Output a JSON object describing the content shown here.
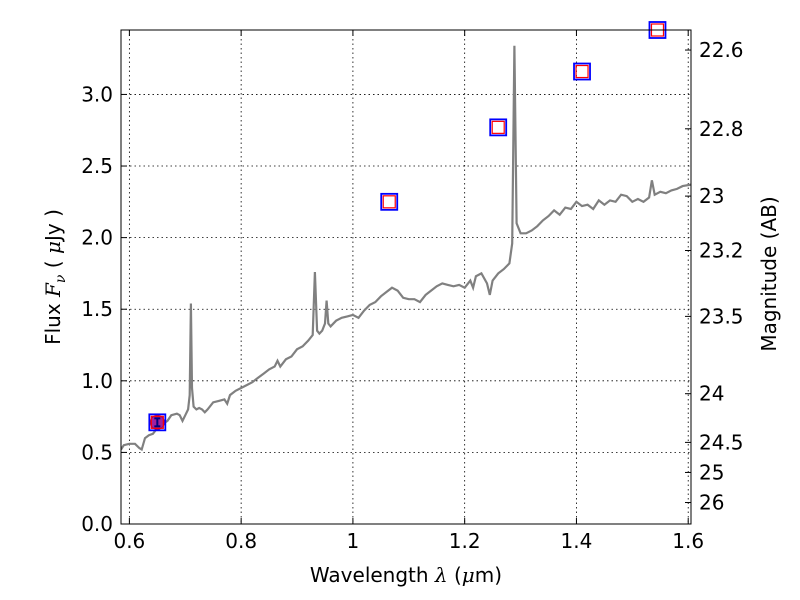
{
  "chart_data": {
    "type": "scatter",
    "xlabel": {
      "prefix": "Wavelength  ",
      "symbol": "λ",
      "open": " (",
      "unit_mu": "μ",
      "unit_rest": "m)"
    },
    "ylabel": {
      "prefix": "Flux  ",
      "symbol": "F",
      "sub": "ν",
      "open": "  ( ",
      "unit_mu": "μ",
      "unit_rest": "Jy )"
    },
    "y2label": "Magnitude (AB)",
    "xlim": [
      0.585,
      1.605
    ],
    "ylim": [
      0.0,
      3.45
    ],
    "grid": true,
    "x_ticks": [
      {
        "v": 0.6,
        "label": "0.6"
      },
      {
        "v": 0.8,
        "label": "0.8"
      },
      {
        "v": 1.0,
        "label": "1"
      },
      {
        "v": 1.2,
        "label": "1.2"
      },
      {
        "v": 1.4,
        "label": "1.4"
      },
      {
        "v": 1.6,
        "label": "1.6"
      }
    ],
    "y_ticks": [
      {
        "v": 0.0,
        "label": "0.0"
      },
      {
        "v": 0.5,
        "label": "0.5"
      },
      {
        "v": 1.0,
        "label": "1.0"
      },
      {
        "v": 1.5,
        "label": "1.5"
      },
      {
        "v": 2.0,
        "label": "2.0"
      },
      {
        "v": 2.5,
        "label": "2.5"
      },
      {
        "v": 3.0,
        "label": "3.0"
      }
    ],
    "y2_ticks": [
      {
        "flux": 3.31,
        "label": "22.6"
      },
      {
        "flux": 2.76,
        "label": "22.8"
      },
      {
        "flux": 2.29,
        "label": "23"
      },
      {
        "flux": 1.91,
        "label": "23.2"
      },
      {
        "flux": 1.45,
        "label": "23.5"
      },
      {
        "flux": 0.91,
        "label": "24"
      },
      {
        "flux": 0.57,
        "label": "24.5"
      },
      {
        "flux": 0.36,
        "label": "25"
      },
      {
        "flux": 0.15,
        "label": "26"
      }
    ],
    "series": [
      {
        "kind": "spectrum",
        "color": "#808080",
        "points": [
          [
            0.585,
            0.52
          ],
          [
            0.59,
            0.55
          ],
          [
            0.6,
            0.56
          ],
          [
            0.61,
            0.56
          ],
          [
            0.618,
            0.53
          ],
          [
            0.622,
            0.52
          ],
          [
            0.628,
            0.6
          ],
          [
            0.635,
            0.62
          ],
          [
            0.642,
            0.63
          ],
          [
            0.65,
            0.67
          ],
          [
            0.66,
            0.7
          ],
          [
            0.668,
            0.72
          ],
          [
            0.675,
            0.76
          ],
          [
            0.685,
            0.77
          ],
          [
            0.69,
            0.76
          ],
          [
            0.695,
            0.72
          ],
          [
            0.7,
            0.76
          ],
          [
            0.705,
            0.8
          ],
          [
            0.708,
            0.9
          ],
          [
            0.71,
            1.54
          ],
          [
            0.712,
            0.95
          ],
          [
            0.715,
            0.82
          ],
          [
            0.72,
            0.8
          ],
          [
            0.725,
            0.81
          ],
          [
            0.73,
            0.8
          ],
          [
            0.735,
            0.78
          ],
          [
            0.74,
            0.8
          ],
          [
            0.75,
            0.85
          ],
          [
            0.76,
            0.86
          ],
          [
            0.77,
            0.87
          ],
          [
            0.775,
            0.84
          ],
          [
            0.78,
            0.9
          ],
          [
            0.79,
            0.93
          ],
          [
            0.8,
            0.95
          ],
          [
            0.81,
            0.97
          ],
          [
            0.82,
            0.99
          ],
          [
            0.83,
            1.02
          ],
          [
            0.84,
            1.05
          ],
          [
            0.85,
            1.08
          ],
          [
            0.86,
            1.1
          ],
          [
            0.865,
            1.14
          ],
          [
            0.87,
            1.1
          ],
          [
            0.88,
            1.15
          ],
          [
            0.89,
            1.17
          ],
          [
            0.9,
            1.22
          ],
          [
            0.91,
            1.24
          ],
          [
            0.92,
            1.28
          ],
          [
            0.928,
            1.32
          ],
          [
            0.932,
            1.76
          ],
          [
            0.936,
            1.35
          ],
          [
            0.94,
            1.33
          ],
          [
            0.945,
            1.35
          ],
          [
            0.95,
            1.4
          ],
          [
            0.953,
            1.56
          ],
          [
            0.956,
            1.4
          ],
          [
            0.96,
            1.38
          ],
          [
            0.97,
            1.42
          ],
          [
            0.98,
            1.44
          ],
          [
            0.99,
            1.45
          ],
          [
            1.0,
            1.46
          ],
          [
            1.01,
            1.44
          ],
          [
            1.02,
            1.49
          ],
          [
            1.03,
            1.53
          ],
          [
            1.04,
            1.55
          ],
          [
            1.05,
            1.59
          ],
          [
            1.06,
            1.62
          ],
          [
            1.07,
            1.65
          ],
          [
            1.08,
            1.63
          ],
          [
            1.09,
            1.58
          ],
          [
            1.1,
            1.57
          ],
          [
            1.11,
            1.57
          ],
          [
            1.12,
            1.55
          ],
          [
            1.13,
            1.6
          ],
          [
            1.14,
            1.63
          ],
          [
            1.15,
            1.66
          ],
          [
            1.16,
            1.68
          ],
          [
            1.17,
            1.67
          ],
          [
            1.18,
            1.66
          ],
          [
            1.19,
            1.67
          ],
          [
            1.2,
            1.65
          ],
          [
            1.21,
            1.7
          ],
          [
            1.215,
            1.65
          ],
          [
            1.22,
            1.73
          ],
          [
            1.23,
            1.75
          ],
          [
            1.24,
            1.68
          ],
          [
            1.245,
            1.6
          ],
          [
            1.25,
            1.7
          ],
          [
            1.26,
            1.75
          ],
          [
            1.27,
            1.78
          ],
          [
            1.28,
            1.82
          ],
          [
            1.285,
            1.96
          ],
          [
            1.289,
            3.34
          ],
          [
            1.293,
            2.1
          ],
          [
            1.3,
            2.03
          ],
          [
            1.31,
            2.03
          ],
          [
            1.32,
            2.05
          ],
          [
            1.33,
            2.08
          ],
          [
            1.34,
            2.12
          ],
          [
            1.35,
            2.15
          ],
          [
            1.36,
            2.19
          ],
          [
            1.37,
            2.16
          ],
          [
            1.38,
            2.21
          ],
          [
            1.39,
            2.2
          ],
          [
            1.4,
            2.25
          ],
          [
            1.41,
            2.22
          ],
          [
            1.42,
            2.23
          ],
          [
            1.43,
            2.2
          ],
          [
            1.44,
            2.26
          ],
          [
            1.45,
            2.23
          ],
          [
            1.46,
            2.26
          ],
          [
            1.47,
            2.25
          ],
          [
            1.48,
            2.3
          ],
          [
            1.49,
            2.29
          ],
          [
            1.5,
            2.25
          ],
          [
            1.51,
            2.27
          ],
          [
            1.52,
            2.25
          ],
          [
            1.53,
            2.28
          ],
          [
            1.535,
            2.4
          ],
          [
            1.54,
            2.3
          ],
          [
            1.55,
            2.32
          ],
          [
            1.56,
            2.31
          ],
          [
            1.57,
            2.33
          ],
          [
            1.58,
            2.34
          ],
          [
            1.59,
            2.36
          ],
          [
            1.605,
            2.37
          ]
        ]
      },
      {
        "kind": "observed",
        "color": "#000080",
        "points": [
          {
            "x": 0.65,
            "y": 0.71
          }
        ]
      },
      {
        "kind": "model-blue",
        "color": "#0000ff",
        "points": [
          {
            "x": 0.65,
            "y": 0.71
          },
          {
            "x": 1.065,
            "y": 2.25
          },
          {
            "x": 1.26,
            "y": 2.77
          },
          {
            "x": 1.41,
            "y": 3.16
          },
          {
            "x": 1.545,
            "y": 3.45
          }
        ]
      },
      {
        "kind": "model-red",
        "color": "#ff0000",
        "points": [
          {
            "x": 0.65,
            "y": 0.71
          },
          {
            "x": 1.065,
            "y": 2.25
          },
          {
            "x": 1.26,
            "y": 2.77
          },
          {
            "x": 1.41,
            "y": 3.16
          },
          {
            "x": 1.545,
            "y": 3.45
          }
        ]
      }
    ]
  }
}
